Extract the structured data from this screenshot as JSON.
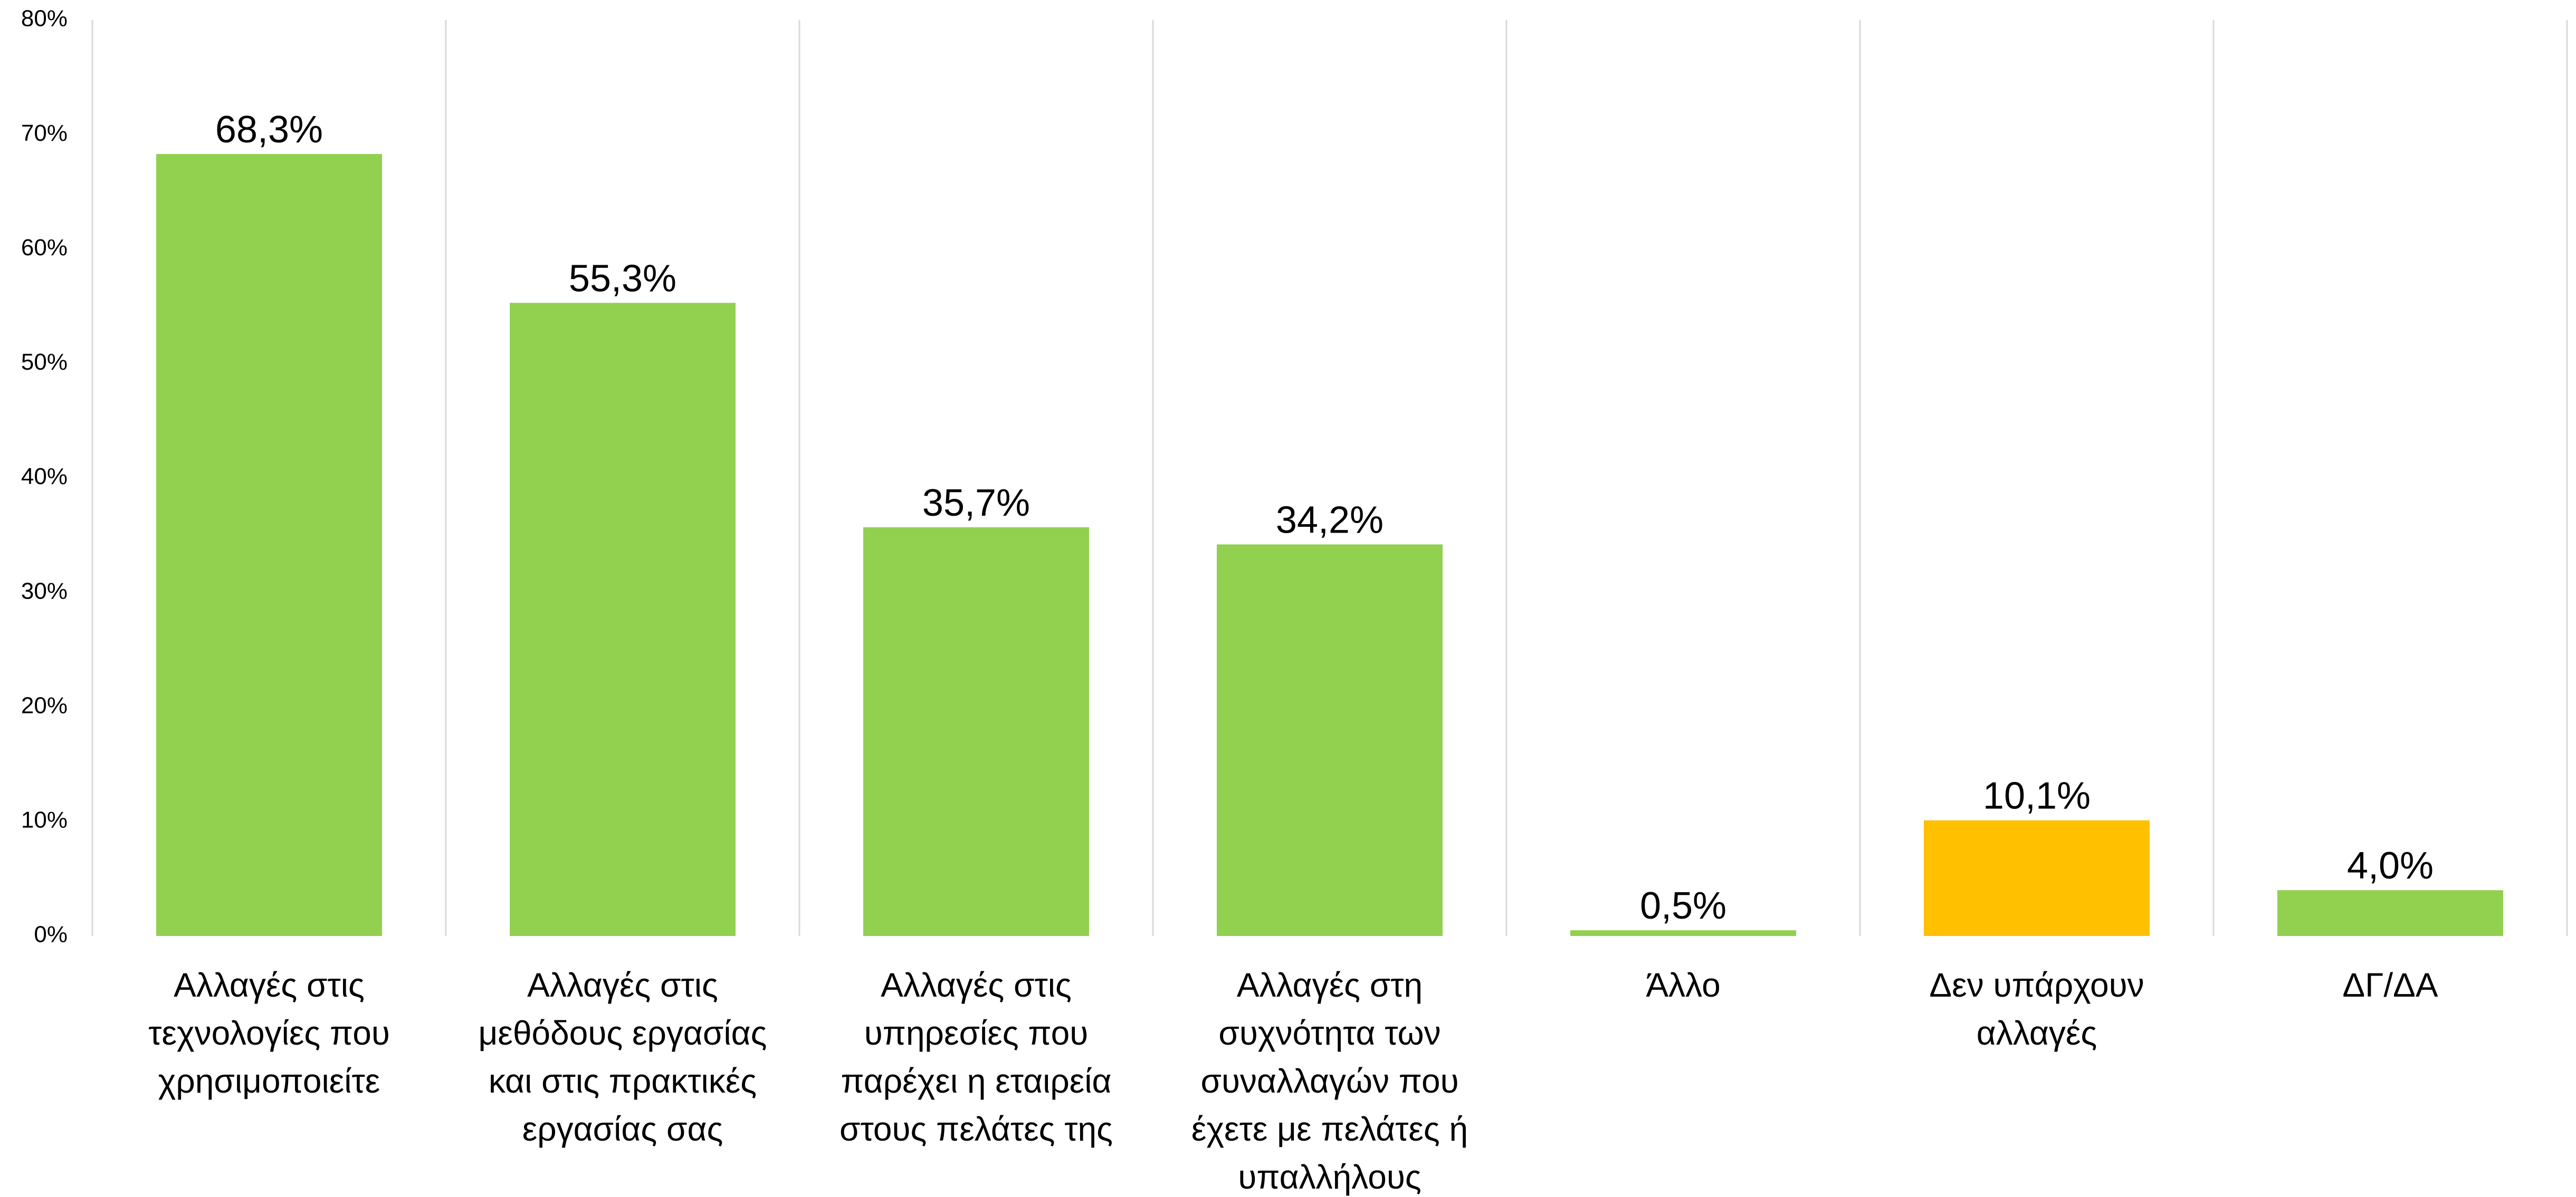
{
  "chart_data": {
    "type": "bar",
    "title": "",
    "xlabel": "",
    "ylabel": "",
    "ylim": [
      0,
      80
    ],
    "y_ticks": [
      "0%",
      "10%",
      "20%",
      "30%",
      "40%",
      "50%",
      "60%",
      "70%",
      "80%"
    ],
    "grid": "vertical separators between categories",
    "legend": "none",
    "categories": [
      "Αλλαγές στις τεχνολογίες που χρησιμοποιείτε",
      "Αλλαγές στις μεθόδους εργασίας και στις πρακτικές εργασίας σας",
      "Αλλαγές στις υπηρεσίες που παρέχει η εταιρεία στους πελάτες της",
      "Αλλαγές στη συχνότητα των συναλλαγών που έχετε με πελάτες ή υπαλλήλους",
      "Άλλο",
      "Δεν υπάρχουν αλλαγές",
      "ΔΓ/ΔΑ"
    ],
    "category_lines": [
      [
        "Αλλαγές στις",
        "τεχνολογίες που",
        "χρησιμοποιείτε"
      ],
      [
        "Αλλαγές στις",
        "μεθόδους εργασίας",
        "και στις πρακτικές",
        "εργασίας σας"
      ],
      [
        "Αλλαγές στις",
        "υπηρεσίες που",
        "παρέχει η εταιρεία",
        "στους πελάτες της"
      ],
      [
        "Αλλαγές στη",
        "συχνότητα των",
        "συναλλαγών που",
        "έχετε με πελάτες ή",
        "υπαλλήλους"
      ],
      [
        "Άλλο"
      ],
      [
        "Δεν υπάρχουν",
        "αλλαγές"
      ],
      [
        "ΔΓ/ΔΑ"
      ]
    ],
    "values": [
      68.3,
      55.3,
      35.7,
      34.2,
      0.5,
      10.1,
      4.0
    ],
    "value_labels": [
      "68,3%",
      "55,3%",
      "35,7%",
      "34,2%",
      "0,5%",
      "10,1%",
      "4,0%"
    ],
    "bar_colors": [
      "#92d050",
      "#92d050",
      "#92d050",
      "#92d050",
      "#92d050",
      "#ffc000",
      "#92d050"
    ]
  },
  "colors": {
    "bar_default": "#92d050",
    "bar_highlight": "#ffc000",
    "separator": "#d9d9d9"
  }
}
